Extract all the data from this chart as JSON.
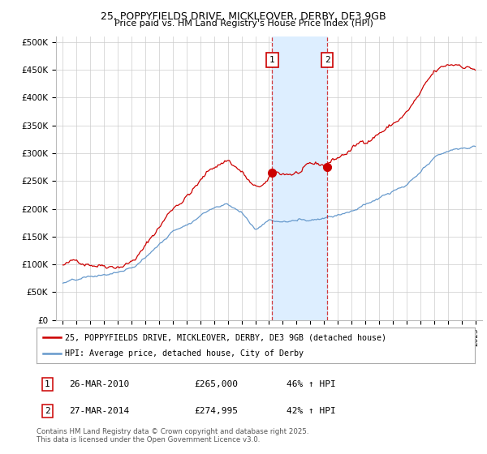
{
  "title1": "25, POPPYFIELDS DRIVE, MICKLEOVER, DERBY, DE3 9GB",
  "title2": "Price paid vs. HM Land Registry's House Price Index (HPI)",
  "ylabel_ticks": [
    "£0",
    "£50K",
    "£100K",
    "£150K",
    "£200K",
    "£250K",
    "£300K",
    "£350K",
    "£400K",
    "£450K",
    "£500K"
  ],
  "ylim": [
    0,
    500000
  ],
  "xlim_start": 1994.5,
  "xlim_end": 2025.5,
  "transaction1_x": 2010.23,
  "transaction1_y": 265000,
  "transaction1_label": "1",
  "transaction1_date": "26-MAR-2010",
  "transaction1_price": "£265,000",
  "transaction1_hpi": "46% ↑ HPI",
  "transaction2_x": 2014.23,
  "transaction2_y": 274995,
  "transaction2_label": "2",
  "transaction2_date": "27-MAR-2014",
  "transaction2_price": "£274,995",
  "transaction2_hpi": "42% ↑ HPI",
  "line1_color": "#cc0000",
  "line2_color": "#6699cc",
  "shade_color": "#ddeeff",
  "legend_line1": "25, POPPYFIELDS DRIVE, MICKLEOVER, DERBY, DE3 9GB (detached house)",
  "legend_line2": "HPI: Average price, detached house, City of Derby",
  "footnote": "Contains HM Land Registry data © Crown copyright and database right 2025.\nThis data is licensed under the Open Government Licence v3.0."
}
